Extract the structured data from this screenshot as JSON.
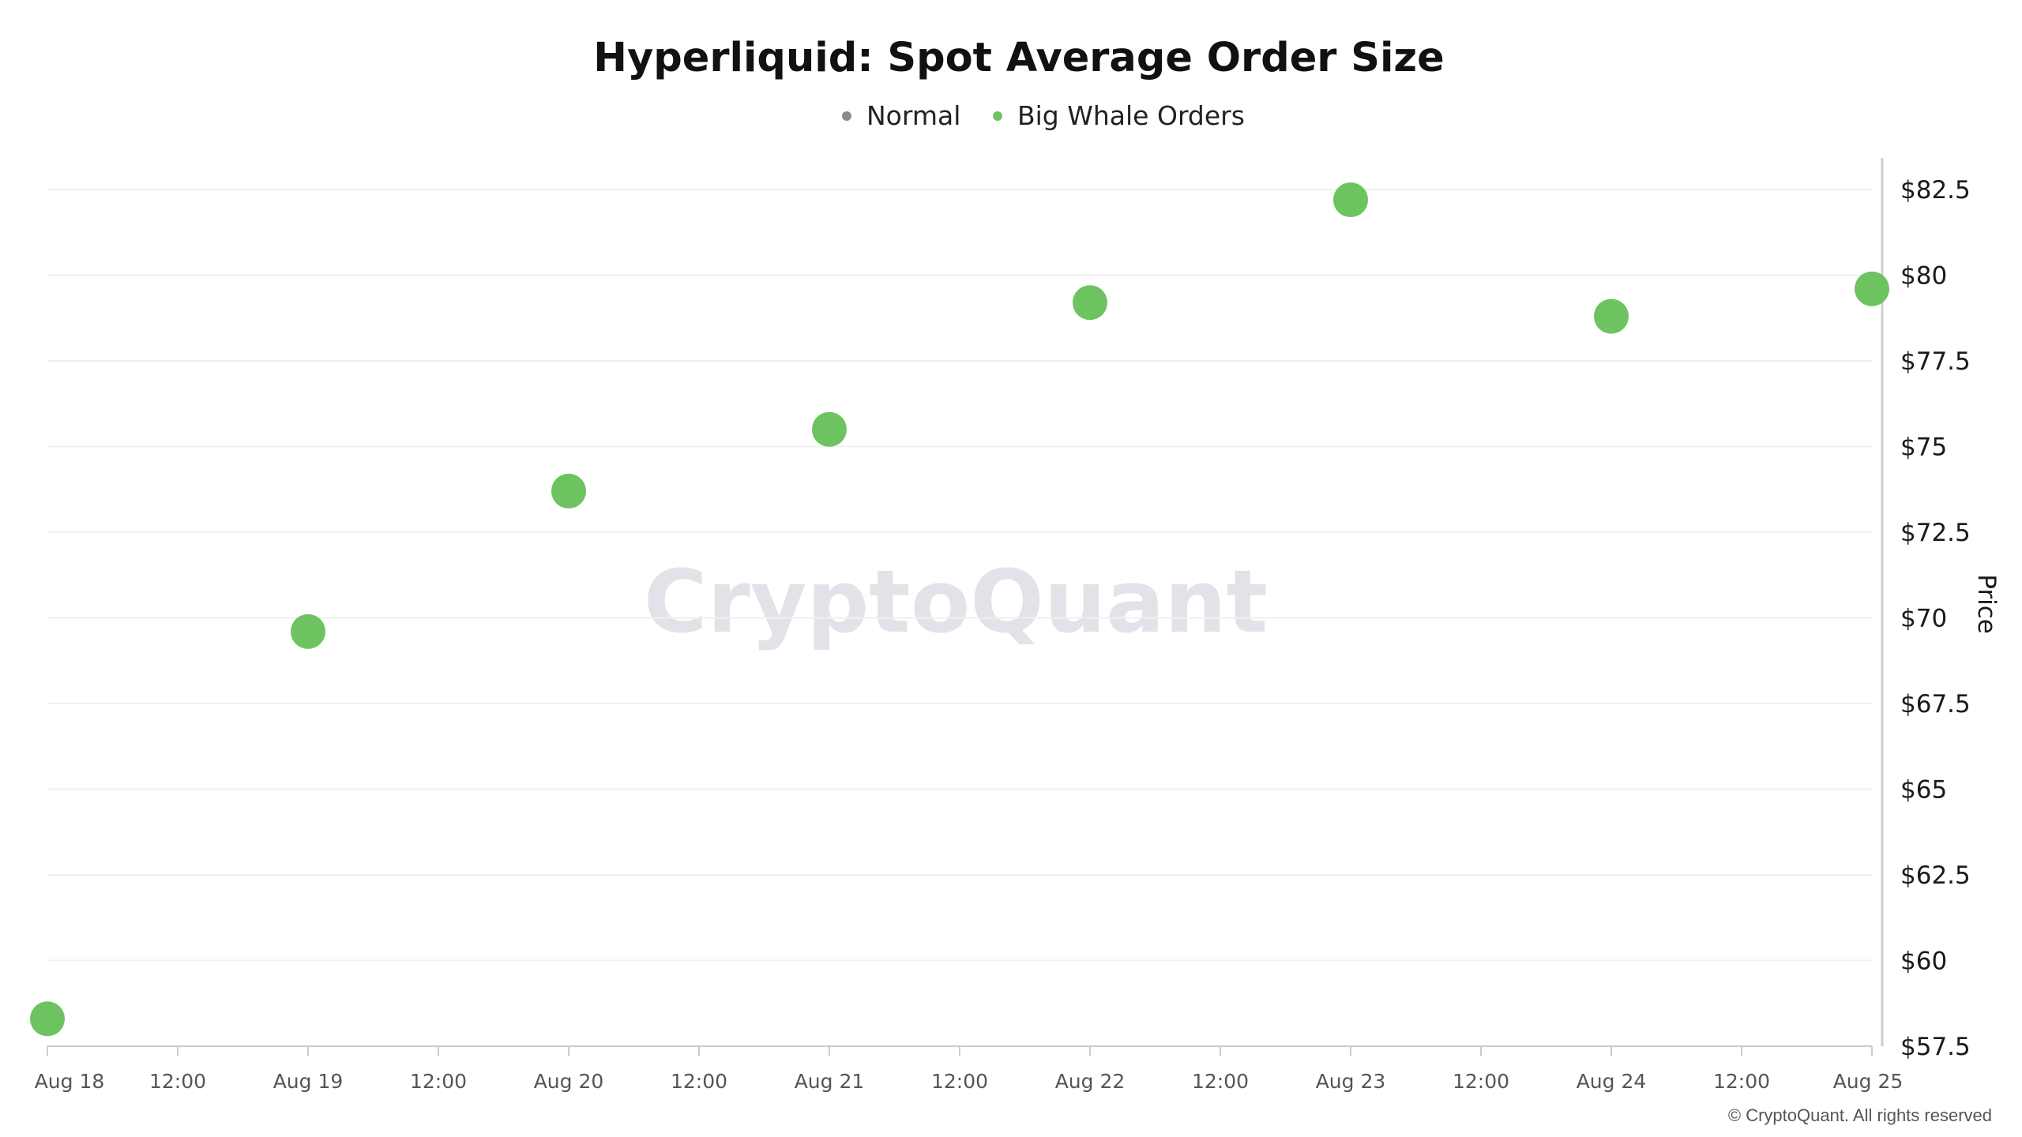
{
  "chart_data": {
    "type": "scatter",
    "title": "Hyperliquid: Spot Average Order Size",
    "ylabel": "Price",
    "xlabel": "",
    "legend": [
      {
        "name": "Normal",
        "color": "#8c8c8c"
      },
      {
        "name": "Big Whale Orders",
        "color": "#6cc35f"
      }
    ],
    "legend_position": "top-center",
    "x_ticks": [
      "Aug 18",
      "12:00",
      "Aug 19",
      "12:00",
      "Aug 20",
      "12:00",
      "Aug 21",
      "12:00",
      "Aug 22",
      "12:00",
      "Aug 23",
      "12:00",
      "Aug 24",
      "12:00",
      "Aug 25"
    ],
    "y_ticks": [
      "$57.5",
      "$60",
      "$62.5",
      "$65",
      "$67.5",
      "$70",
      "$72.5",
      "$75",
      "$77.5",
      "$80",
      "$82.5"
    ],
    "y_tick_values": [
      57.5,
      60,
      62.5,
      65,
      67.5,
      70,
      72.5,
      75,
      77.5,
      80,
      82.5
    ],
    "ylim": [
      57.5,
      82.5
    ],
    "y_axis_side": "right",
    "grid": true,
    "series": [
      {
        "name": "Big Whale Orders",
        "color": "#6cc35f",
        "points": [
          {
            "x": "Aug 18",
            "y": 58.3
          },
          {
            "x": "Aug 19",
            "y": 69.6
          },
          {
            "x": "Aug 20",
            "y": 73.7
          },
          {
            "x": "Aug 21",
            "y": 75.5
          },
          {
            "x": "Aug 22",
            "y": 79.2
          },
          {
            "x": "Aug 23",
            "y": 82.2
          },
          {
            "x": "Aug 24",
            "y": 78.8
          },
          {
            "x": "Aug 25",
            "y": 79.6
          }
        ]
      }
    ],
    "watermark": "CryptoQuant",
    "copyright": "© CryptoQuant. All rights reserved"
  }
}
